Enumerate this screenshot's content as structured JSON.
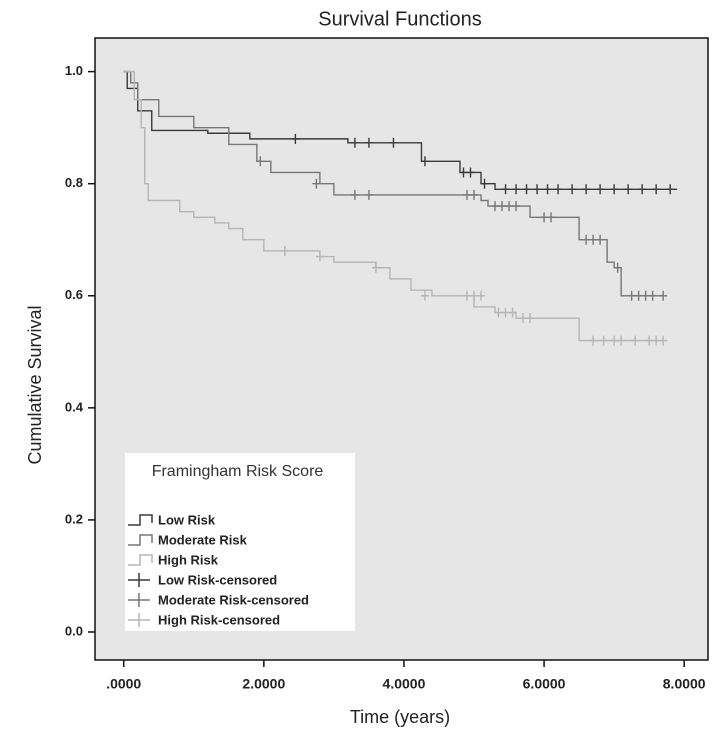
{
  "chart_data": {
    "type": "line",
    "title": "Survival Functions",
    "x_label": "Time (years)",
    "y_label": "Cumulative Survival",
    "xlim": [
      -0.41,
      8.34
    ],
    "ylim": [
      -0.05,
      1.06
    ],
    "xticks": [
      {
        "value": 0,
        "label": ".0000"
      },
      {
        "value": 2,
        "label": "2.0000"
      },
      {
        "value": 4,
        "label": "4.0000"
      },
      {
        "value": 6,
        "label": "6.0000"
      },
      {
        "value": 8,
        "label": "8.0000"
      }
    ],
    "yticks": [
      {
        "value": 0,
        "label": "0.0"
      },
      0.2,
      0.4,
      0.6,
      0.8,
      {
        "value": 1,
        "label": "1.0"
      }
    ],
    "legend_title": "Framingham Risk Score",
    "legend_position": "lower left",
    "background": "#e6e6e6",
    "series": [
      {
        "name": "Low Risk",
        "color": "#3a3a3a",
        "step": true,
        "x": [
          0,
          0.05,
          0.2,
          0.4,
          1.2,
          1.8,
          3.2,
          4.25,
          4.8,
          5.1,
          5.3,
          7.9
        ],
        "values": [
          1.0,
          0.97,
          0.93,
          0.895,
          0.89,
          0.88,
          0.873,
          0.84,
          0.82,
          0.8,
          0.79,
          0.79
        ]
      },
      {
        "name": "Moderate Risk",
        "color": "#777777",
        "step": true,
        "x": [
          0,
          0.1,
          0.2,
          0.5,
          1.0,
          1.5,
          1.9,
          2.1,
          2.8,
          3.0,
          5.1,
          5.2,
          5.8,
          6.5,
          6.9,
          7.0,
          7.1,
          7.7
        ],
        "values": [
          1.0,
          0.98,
          0.95,
          0.92,
          0.9,
          0.87,
          0.84,
          0.82,
          0.8,
          0.78,
          0.77,
          0.76,
          0.74,
          0.7,
          0.66,
          0.65,
          0.6,
          0.6
        ]
      },
      {
        "name": "High Risk",
        "color": "#b5b5b5",
        "step": true,
        "x": [
          0,
          0.15,
          0.25,
          0.3,
          0.35,
          0.8,
          1.0,
          1.3,
          1.5,
          1.7,
          2.0,
          2.8,
          3.0,
          3.6,
          3.8,
          4.1,
          4.4,
          5.0,
          5.3,
          5.6,
          6.5,
          7.7
        ],
        "values": [
          1.0,
          0.95,
          0.9,
          0.8,
          0.77,
          0.75,
          0.74,
          0.73,
          0.72,
          0.7,
          0.68,
          0.67,
          0.66,
          0.65,
          0.63,
          0.61,
          0.6,
          0.58,
          0.57,
          0.56,
          0.52,
          0.52
        ]
      },
      {
        "name": "Low Risk-censored",
        "color": "#3a3a3a",
        "marker": "+",
        "x": [
          2.45,
          3.3,
          3.5,
          3.85,
          4.3,
          4.85,
          4.95,
          5.15,
          5.45,
          5.6,
          5.75,
          5.9,
          6.05,
          6.2,
          6.4,
          6.6,
          6.8,
          7.0,
          7.2,
          7.4,
          7.6,
          7.8
        ],
        "values": [
          0.88,
          0.873,
          0.873,
          0.873,
          0.84,
          0.82,
          0.82,
          0.8,
          0.79,
          0.79,
          0.79,
          0.79,
          0.79,
          0.79,
          0.79,
          0.79,
          0.79,
          0.79,
          0.79,
          0.79,
          0.79,
          0.79
        ]
      },
      {
        "name": "Moderate Risk-censored",
        "color": "#777777",
        "marker": "+",
        "x": [
          1.95,
          2.75,
          3.3,
          3.5,
          4.9,
          5.0,
          5.3,
          5.4,
          5.5,
          5.6,
          6.0,
          6.1,
          6.6,
          6.7,
          6.8,
          7.05,
          7.25,
          7.35,
          7.45,
          7.55,
          7.7
        ],
        "values": [
          0.84,
          0.8,
          0.78,
          0.78,
          0.78,
          0.78,
          0.76,
          0.76,
          0.76,
          0.76,
          0.74,
          0.74,
          0.7,
          0.7,
          0.7,
          0.65,
          0.6,
          0.6,
          0.6,
          0.6,
          0.6
        ]
      },
      {
        "name": "High Risk-censored",
        "color": "#b5b5b5",
        "marker": "+",
        "x": [
          2.3,
          2.8,
          3.6,
          4.3,
          4.9,
          5.0,
          5.1,
          5.35,
          5.45,
          5.55,
          5.7,
          5.8,
          6.7,
          6.85,
          7.0,
          7.1,
          7.3,
          7.5,
          7.6,
          7.7
        ],
        "values": [
          0.68,
          0.67,
          0.65,
          0.6,
          0.6,
          0.6,
          0.6,
          0.57,
          0.57,
          0.57,
          0.56,
          0.56,
          0.52,
          0.52,
          0.52,
          0.52,
          0.52,
          0.52,
          0.52,
          0.52
        ]
      }
    ]
  }
}
